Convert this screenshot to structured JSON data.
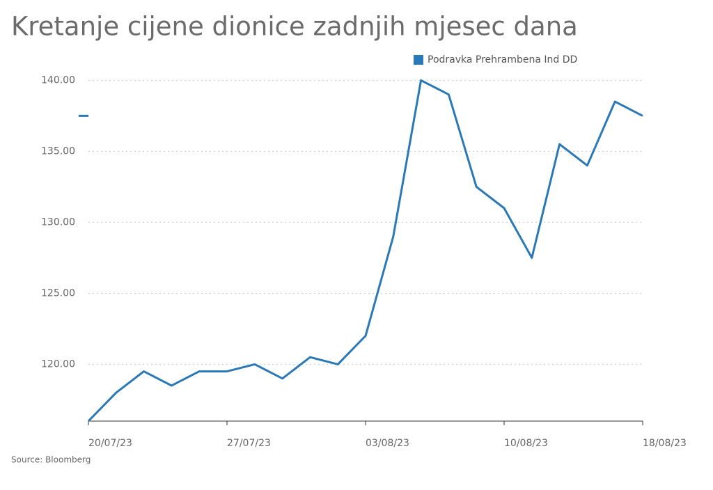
{
  "chart_data": {
    "type": "line",
    "title": "Kretanje cijene dionice zadnjih mjesec dana",
    "source": "Source: Bloomberg",
    "categories": [
      "20/07/23",
      null,
      null,
      null,
      null,
      "27/07/23",
      null,
      null,
      null,
      null,
      "03/08/23",
      null,
      null,
      null,
      null,
      "10/08/23",
      null,
      null,
      null,
      null,
      "18/08/23"
    ],
    "series": [
      {
        "name": "Podravka Prehrambena Ind DD",
        "color": "#2a78b5",
        "values": [
          116.0,
          118.0,
          119.5,
          118.5,
          119.5,
          119.5,
          120.0,
          119.0,
          120.5,
          120.0,
          122.0,
          129.0,
          140.0,
          139.0,
          132.5,
          131.0,
          127.5,
          135.5,
          134.0,
          138.5,
          137.5
        ]
      }
    ],
    "ylim": [
      116,
      141
    ],
    "yticks": [
      {
        "value": 120,
        "label": "120.00"
      },
      {
        "value": 125,
        "label": "125.00"
      },
      {
        "value": 130,
        "label": "130.00"
      },
      {
        "value": 135,
        "label": "135.00"
      },
      {
        "value": 140,
        "label": "140.00"
      }
    ],
    "grid": true,
    "legend": "top-right"
  }
}
